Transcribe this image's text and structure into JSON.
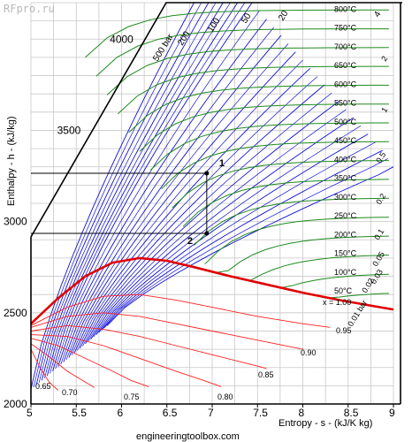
{
  "watermark": "RFpro.ru",
  "footer": "engineeringtoolbox.com",
  "chart_data": {
    "type": "line",
    "xlabel": "Entropy - s - (kJ/K kg)",
    "ylabel": "Enthalpy - h - (kJ/kg)",
    "xlim": [
      5,
      9
    ],
    "ylim": [
      2000,
      4200
    ],
    "x_ticks": [
      "5",
      "5.5",
      "6",
      "6.5",
      "7",
      "7.5",
      "8",
      "8.5",
      "9"
    ],
    "y_ticks": [
      "2000",
      "2500",
      "3000",
      "3500",
      "4000"
    ],
    "grid": true,
    "colors": {
      "isobar": "#1010d8",
      "isotherm": "#1e8a1e",
      "quality": "#ff2020",
      "saturation": "#e00000",
      "process": "#000000",
      "grid": "#c8c8c8"
    },
    "saturation_curve": {
      "label": "x = 1.00",
      "points": [
        [
          5.0,
          2440
        ],
        [
          5.3,
          2580
        ],
        [
          5.6,
          2700
        ],
        [
          5.9,
          2775
        ],
        [
          6.2,
          2800
        ],
        [
          6.5,
          2785
        ],
        [
          6.8,
          2750
        ],
        [
          7.2,
          2700
        ],
        [
          7.6,
          2655
        ],
        [
          8.0,
          2610
        ],
        [
          8.4,
          2570
        ],
        [
          8.8,
          2535
        ],
        [
          9.0,
          2518
        ]
      ]
    },
    "quality_lines": [
      {
        "label": "0.95",
        "points": [
          [
            5.0,
            2430
          ],
          [
            5.4,
            2530
          ],
          [
            5.8,
            2590
          ],
          [
            6.2,
            2600
          ],
          [
            6.6,
            2570
          ],
          [
            7.0,
            2530
          ],
          [
            7.5,
            2480
          ],
          [
            8.0,
            2440
          ],
          [
            8.3,
            2420
          ]
        ]
      },
      {
        "label": "0.90",
        "points": [
          [
            5.0,
            2420
          ],
          [
            5.4,
            2480
          ],
          [
            5.8,
            2500
          ],
          [
            6.2,
            2480
          ],
          [
            6.6,
            2440
          ],
          [
            7.0,
            2400
          ],
          [
            7.5,
            2350
          ],
          [
            8.0,
            2300
          ]
        ]
      },
      {
        "label": "0.85",
        "points": [
          [
            5.0,
            2400
          ],
          [
            5.4,
            2430
          ],
          [
            5.8,
            2410
          ],
          [
            6.2,
            2370
          ],
          [
            6.6,
            2320
          ],
          [
            7.0,
            2270
          ],
          [
            7.4,
            2220
          ],
          [
            7.6,
            2195
          ]
        ]
      },
      {
        "label": "0.80",
        "points": [
          [
            5.0,
            2380
          ],
          [
            5.4,
            2370
          ],
          [
            5.8,
            2320
          ],
          [
            6.2,
            2250
          ],
          [
            6.6,
            2180
          ],
          [
            6.9,
            2130
          ],
          [
            7.1,
            2095
          ]
        ]
      },
      {
        "label": "0.75",
        "points": [
          [
            5.0,
            2360
          ],
          [
            5.3,
            2320
          ],
          [
            5.6,
            2250
          ],
          [
            5.9,
            2180
          ],
          [
            6.1,
            2130
          ],
          [
            6.3,
            2095
          ]
        ]
      },
      {
        "label": "0.70",
        "points": [
          [
            5.0,
            2330
          ],
          [
            5.2,
            2260
          ],
          [
            5.4,
            2180
          ],
          [
            5.6,
            2120
          ],
          [
            5.7,
            2090
          ]
        ]
      },
      {
        "label": "0.65",
        "points": [
          [
            5.0,
            2300
          ],
          [
            5.1,
            2200
          ],
          [
            5.2,
            2120
          ],
          [
            5.3,
            2075
          ]
        ]
      }
    ],
    "process_points": [
      {
        "label": "1",
        "s": 6.94,
        "h": 3265
      },
      {
        "label": "2",
        "s": 6.94,
        "h": 2935
      }
    ],
    "isobar_labels": [
      "500 bar",
      "200",
      "100",
      "50",
      "20",
      "4",
      "2",
      "1",
      "0.5",
      "0.2",
      "0.1",
      "0.05",
      "0.03",
      "0.02",
      "0.01 bar"
    ],
    "isotherm_labels": [
      "800°C",
      "750°C",
      "700°C",
      "650°C",
      "600°C",
      "550°C",
      "500°C",
      "450°C",
      "400°C",
      "350°C",
      "300°C",
      "250°C",
      "200°C",
      "150°C",
      "100°C",
      "50°C"
    ]
  }
}
